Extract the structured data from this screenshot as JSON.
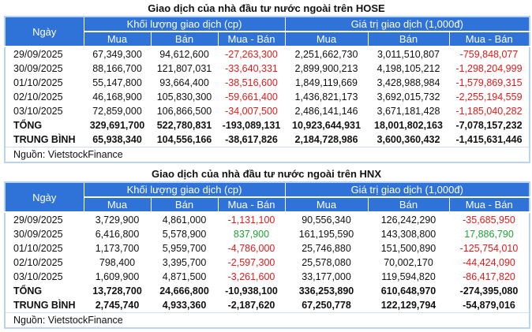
{
  "tables": [
    {
      "title": "Giao dịch của nhà đầu tư nước ngoài trên HOSE",
      "header": {
        "date": "Ngày",
        "volume": "Khối lượng giao dịch (cp)",
        "value": "Giá trị giao dịch (1,000đ)",
        "buy": "Mua",
        "sell": "Bán",
        "net": "Mua - Bán"
      },
      "rows": [
        [
          "29/09/2025",
          "67,349,300",
          "94,612,600",
          "-27,263,300",
          "2,251,662,730",
          "3,011,510,807",
          "-759,848,077"
        ],
        [
          "30/09/2025",
          "88,166,700",
          "121,807,031",
          "-33,640,331",
          "2,899,900,213",
          "4,198,105,212",
          "-1,298,204,999"
        ],
        [
          "01/10/2025",
          "55,147,800",
          "93,664,400",
          "-38,516,600",
          "1,849,119,669",
          "3,428,988,984",
          "-1,579,869,315"
        ],
        [
          "02/10/2025",
          "46,168,900",
          "105,830,300",
          "-59,661,400",
          "1,436,821,173",
          "3,692,015,732",
          "-2,255,194,559"
        ],
        [
          "03/10/2025",
          "72,859,000",
          "106,866,500",
          "-34,007,500",
          "2,486,141,146",
          "3,671,181,428",
          "-1,185,040,282"
        ]
      ],
      "totals": [
        [
          "TỔNG",
          "329,691,700",
          "522,780,831",
          "-193,089,131",
          "10,923,644,931",
          "18,001,802,163",
          "-7,078,157,232"
        ],
        [
          "TRUNG BÌNH",
          "65,938,340",
          "104,556,166",
          "-38,617,826",
          "2,184,728,986",
          "3,600,360,432",
          "-1,415,631,446"
        ]
      ],
      "source": "Nguồn: VietstockFinance"
    },
    {
      "title": "Giao dịch của nhà đầu tư nước ngoài trên HNX",
      "header": {
        "date": "Ngày",
        "volume": "Khối lượng giao dịch (cp)",
        "value": "Giá trị giao dịch (1,000đ)",
        "buy": "Mua",
        "sell": "Bán",
        "net": "Mua - Bán"
      },
      "rows": [
        [
          "29/09/2025",
          "3,729,900",
          "4,861,000",
          "-1,131,100",
          "90,556,340",
          "126,242,290",
          "-35,685,950"
        ],
        [
          "30/09/2025",
          "6,416,800",
          "5,578,900",
          "837,900",
          "161,195,590",
          "143,308,800",
          "17,886,790"
        ],
        [
          "01/10/2025",
          "1,173,700",
          "5,959,700",
          "-4,786,000",
          "25,746,880",
          "151,500,890",
          "-125,754,010"
        ],
        [
          "02/10/2025",
          "798,400",
          "3,395,700",
          "-2,597,300",
          "25,578,080",
          "70,002,170",
          "-44,424,090"
        ],
        [
          "03/10/2025",
          "1,609,900",
          "4,871,500",
          "-3,261,600",
          "33,177,000",
          "119,594,820",
          "-86,417,820"
        ]
      ],
      "totals": [
        [
          "TỔNG",
          "13,728,700",
          "24,666,800",
          "-10,938,100",
          "336,253,890",
          "610,648,970",
          "-274,395,080"
        ],
        [
          "TRUNG BÌNH",
          "2,745,740",
          "4,933,360",
          "-2,187,620",
          "67,250,778",
          "122,129,794",
          "-54,879,016"
        ]
      ],
      "source": "Nguồn: VietstockFinance"
    }
  ],
  "colors": {
    "header": "#2f72d8",
    "negative": "#e01b1b",
    "positive": "#22a035"
  }
}
